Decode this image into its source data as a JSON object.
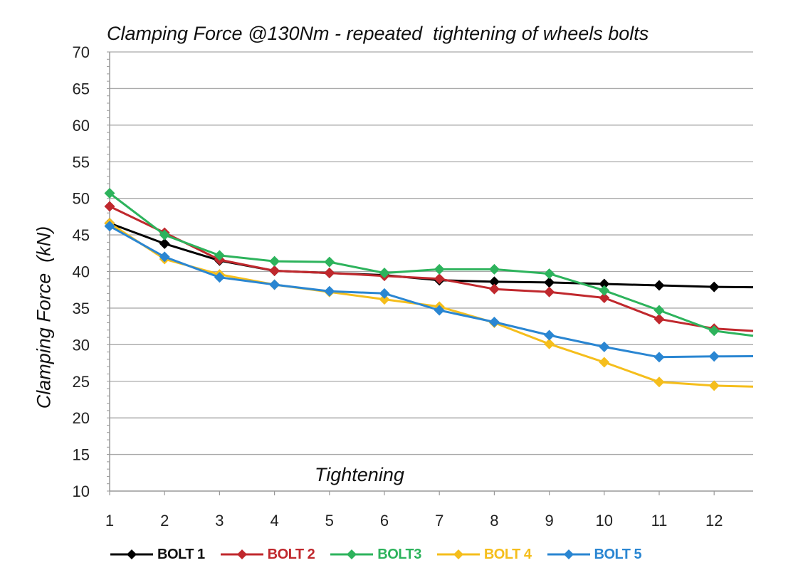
{
  "chart_data": {
    "type": "line",
    "title": "Clamping Force @130Nm - repeated  tightening of wheels bolts",
    "xlabel": "Tightening",
    "ylabel": "Clamping Force  (kN)",
    "x": [
      1,
      2,
      3,
      4,
      5,
      6,
      7,
      8,
      9,
      10,
      11,
      12
    ],
    "xticks": [
      "1",
      "2",
      "3",
      "4",
      "5",
      "6",
      "7",
      "8",
      "9",
      "10",
      "11",
      "12"
    ],
    "yticks": [
      "10",
      "15",
      "20",
      "25",
      "30",
      "35",
      "40",
      "45",
      "50",
      "55",
      "60",
      "65",
      "70"
    ],
    "ylim": [
      10,
      70
    ],
    "grid": true,
    "legend_position": "bottom",
    "series": [
      {
        "name": "BOLT 1",
        "color": "#000000",
        "text_color": "#111111",
        "values": [
          46.6,
          43.8,
          41.5,
          40.1,
          39.8,
          39.5,
          38.8,
          38.6,
          38.5,
          38.3,
          38.1,
          37.9
        ]
      },
      {
        "name": "BOLT 2",
        "color": "#c0282d",
        "text_color": "#c0282d",
        "values": [
          48.9,
          45.3,
          41.6,
          40.1,
          39.8,
          39.4,
          39.0,
          37.6,
          37.2,
          36.4,
          33.5,
          32.2
        ]
      },
      {
        "name": "BOLT3",
        "color": "#2db35c",
        "text_color": "#2db35c",
        "values": [
          50.7,
          45.0,
          42.2,
          41.4,
          41.3,
          39.8,
          40.3,
          40.3,
          39.7,
          37.4,
          34.7,
          31.9
        ]
      },
      {
        "name": "BOLT 4",
        "color": "#f5be1c",
        "text_color": "#f5be1c",
        "values": [
          46.6,
          41.7,
          39.6,
          38.2,
          37.2,
          36.2,
          35.2,
          33.0,
          30.1,
          27.6,
          24.9,
          24.4
        ]
      },
      {
        "name": "BOLT 5",
        "color": "#2a86d2",
        "text_color": "#2a86d2",
        "values": [
          46.2,
          42.0,
          39.2,
          38.2,
          37.3,
          37.0,
          34.7,
          33.1,
          31.3,
          29.7,
          28.3,
          28.4
        ]
      }
    ]
  }
}
